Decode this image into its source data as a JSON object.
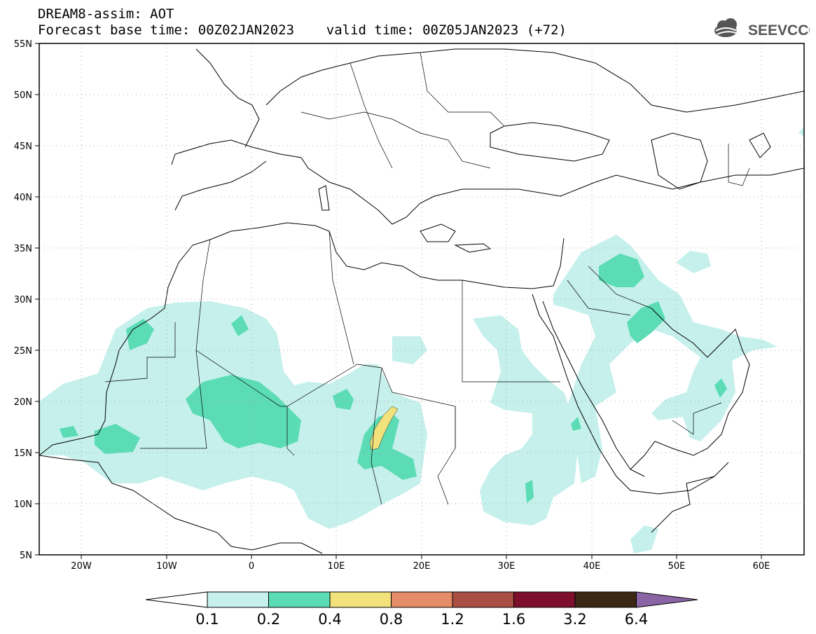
{
  "header": {
    "title_line1": "DREAM8-assim: AOT",
    "title_line2": "Forecast base time: 00Z02JAN2023    valid time: 00Z05JAN2023 (+72)",
    "logo_text": "SEEVCCC"
  },
  "map": {
    "projection": "lat-lon",
    "lon_range": [
      -25,
      65
    ],
    "lat_range": [
      5,
      55
    ],
    "lat_labels": [
      "55N",
      "50N",
      "45N",
      "40N",
      "35N",
      "30N",
      "25N",
      "20N",
      "15N",
      "10N",
      "5N"
    ],
    "lon_labels": [
      "20W",
      "10W",
      "0",
      "10E",
      "20E",
      "30E",
      "40E",
      "50E",
      "60E"
    ],
    "grid": "dotted"
  },
  "colorbar": {
    "labels": [
      "0.1",
      "0.2",
      "0.4",
      "0.8",
      "1.2",
      "1.6",
      "3.2",
      "6.4"
    ],
    "colors": [
      "#ffffff",
      "#c5f0eb",
      "#5bdcb5",
      "#f1e27c",
      "#e48c68",
      "#a94e43",
      "#7d0f2c",
      "#3b2714",
      "#8b64a5"
    ]
  },
  "colors": {
    "aot_0_1": "#c5f0eb",
    "aot_0_2": "#5bdcb5",
    "aot_0_4": "#f1e27c"
  }
}
